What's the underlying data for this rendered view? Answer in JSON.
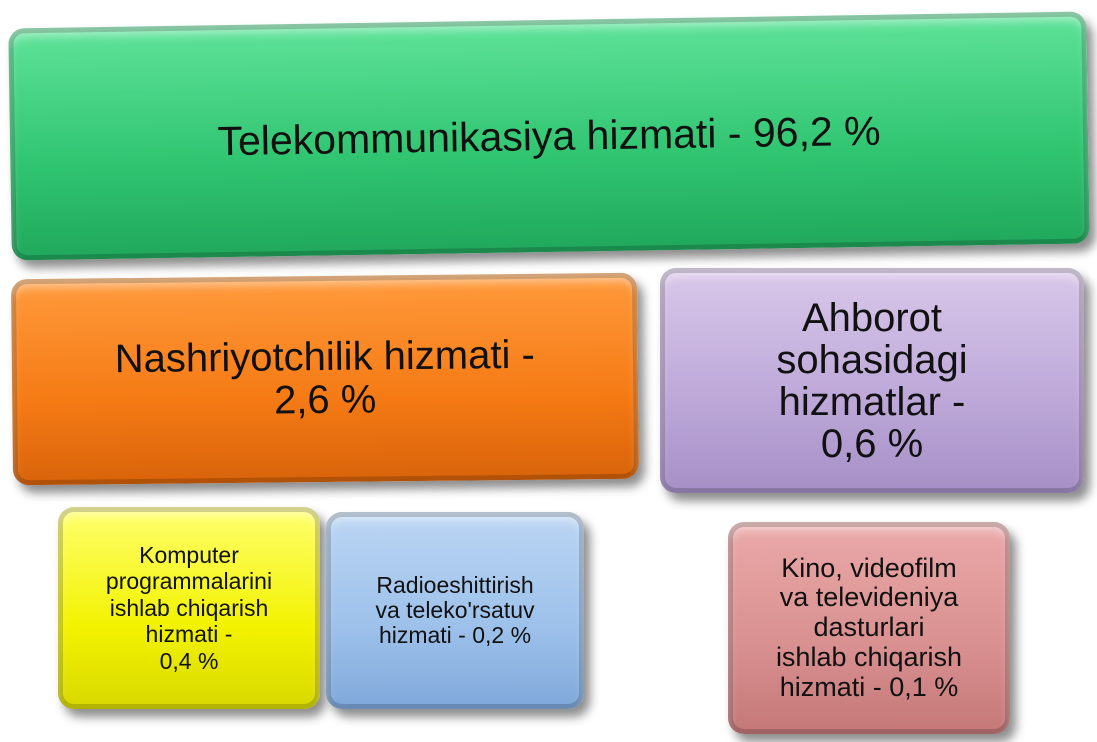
{
  "boxes": [
    {
      "lines": [
        "Telekommunikasiya hizmati - 96,2 %"
      ]
    },
    {
      "lines": [
        "Nashriyotchilik hizmati -",
        "2,6 %"
      ]
    },
    {
      "lines": [
        "Ahborot",
        "sohasidagi",
        "hizmatlar -",
        "0,6 %"
      ]
    },
    {
      "lines": [
        "Komputer",
        "programmalarini",
        "ishlab chiqarish",
        "hizmati -",
        "0,4 %"
      ]
    },
    {
      "lines": [
        "Radioeshittirish",
        "va teleko'rsatuv",
        "hizmati - 0,2 %"
      ]
    },
    {
      "lines": [
        "Kino, videofilm",
        "va televideniya",
        "dasturlari",
        "ishlab chiqarish",
        "hizmati - 0,1 %"
      ]
    }
  ]
}
